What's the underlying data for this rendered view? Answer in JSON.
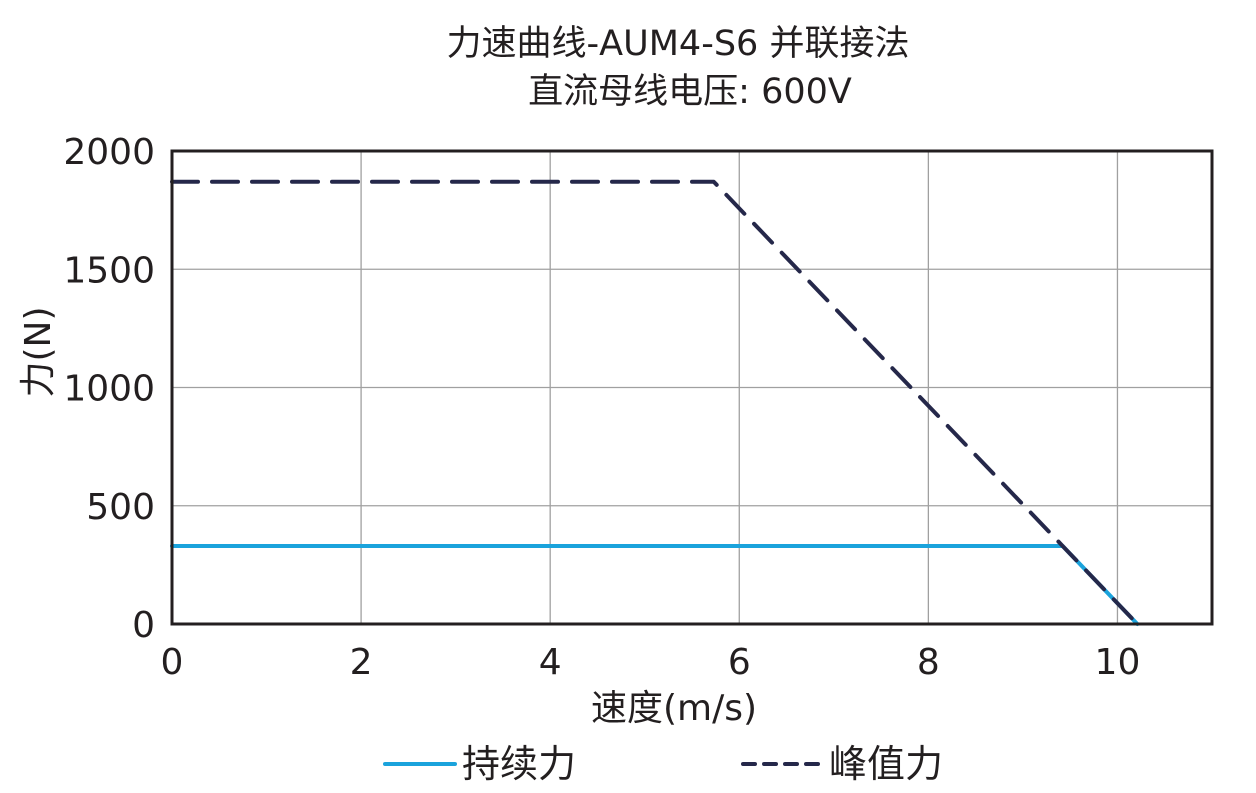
{
  "chart_data": {
    "type": "line",
    "title": "力速曲线-AUM4-S6 并联接法",
    "subtitle": "直流母线电压: 600V",
    "xlabel": "速度(m/s)",
    "ylabel": "力(N)",
    "xlim": [
      0,
      11
    ],
    "ylim": [
      0,
      2000
    ],
    "x_ticks": [
      0,
      2,
      4,
      6,
      8,
      10
    ],
    "y_ticks": [
      0,
      500,
      1000,
      1500,
      2000
    ],
    "x_tick_labels": [
      "0",
      "2",
      "4",
      "6",
      "8",
      "10"
    ],
    "y_tick_labels": [
      "0",
      "500",
      "1000",
      "1500",
      "2000"
    ],
    "grid": true,
    "legend_position": "bottom",
    "series": [
      {
        "name": "持续力",
        "style": "solid",
        "color": "#1aa3dc",
        "x": [
          0,
          9.42,
          10.21
        ],
        "y": [
          330,
          330,
          0
        ]
      },
      {
        "name": "峰值力",
        "style": "dashed",
        "color": "#25284a",
        "x": [
          0,
          5.73,
          9.42,
          10.21
        ],
        "y": [
          1870,
          1870,
          330,
          0
        ]
      }
    ]
  },
  "colors": {
    "axis": "#231f20",
    "grid": "#a0a0a0",
    "background": "#ffffff"
  }
}
